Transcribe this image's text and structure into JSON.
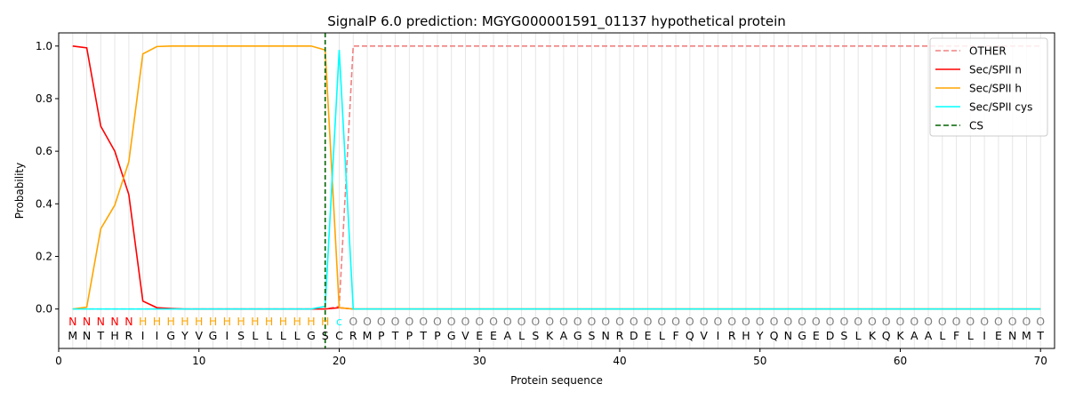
{
  "chart_data": {
    "type": "line",
    "title": "SignalP 6.0 prediction: MGYG000001591_01137 hypothetical protein",
    "xlabel": "Protein sequence",
    "ylabel": "Probability",
    "xlim": [
      0,
      71
    ],
    "ylim": [
      -0.15,
      1.05
    ],
    "xticks": [
      0,
      10,
      20,
      30,
      40,
      50,
      60,
      70
    ],
    "yticks": [
      0.0,
      0.2,
      0.4,
      0.6,
      0.8,
      1.0
    ],
    "sequence": [
      "M",
      "N",
      "T",
      "H",
      "R",
      "I",
      "I",
      "G",
      "Y",
      "V",
      "G",
      "I",
      "S",
      "L",
      "L",
      "L",
      "L",
      "G",
      "S",
      "C",
      "R",
      "M",
      "P",
      "T",
      "P",
      "T",
      "P",
      "G",
      "V",
      "E",
      "E",
      "A",
      "L",
      "S",
      "K",
      "A",
      "G",
      "S",
      "N",
      "R",
      "D",
      "E",
      "L",
      "F",
      "Q",
      "V",
      "I",
      "R",
      "H",
      "Y",
      "Q",
      "N",
      "G",
      "E",
      "D",
      "S",
      "L",
      "K",
      "Q",
      "K",
      "A",
      "A",
      "L",
      "F",
      "L",
      "I",
      "E",
      "N",
      "M",
      "T"
    ],
    "labels": [
      "N",
      "N",
      "N",
      "N",
      "N",
      "H",
      "H",
      "H",
      "H",
      "H",
      "H",
      "H",
      "H",
      "H",
      "H",
      "H",
      "H",
      "H",
      "H",
      "c",
      "O",
      "O",
      "O",
      "O",
      "O",
      "O",
      "O",
      "O",
      "O",
      "O",
      "O",
      "O",
      "O",
      "O",
      "O",
      "O",
      "O",
      "O",
      "O",
      "O",
      "O",
      "O",
      "O",
      "O",
      "O",
      "O",
      "O",
      "O",
      "O",
      "O",
      "O",
      "O",
      "O",
      "O",
      "O",
      "O",
      "O",
      "O",
      "O",
      "O",
      "O",
      "O",
      "O",
      "O",
      "O",
      "O",
      "O",
      "O",
      "O",
      "O"
    ],
    "label_colors": {
      "N": "#ff0000",
      "H": "#ffa500",
      "c": "#00ffff",
      "O": "#808080"
    },
    "series": [
      {
        "name": "OTHER",
        "color": "#f08080",
        "style": "dashed",
        "values": [
          0,
          0,
          0,
          0,
          0,
          0,
          0,
          0,
          0,
          0,
          0,
          0,
          0,
          0,
          0,
          0,
          0,
          0,
          0,
          0.01,
          1.0,
          1,
          1,
          1,
          1,
          1,
          1,
          1,
          1,
          1,
          1,
          1,
          1,
          1,
          1,
          1,
          1,
          1,
          1,
          1,
          1,
          1,
          1,
          1,
          1,
          1,
          1,
          1,
          1,
          1,
          1,
          1,
          1,
          1,
          1,
          1,
          1,
          1,
          1,
          1,
          1,
          1,
          1,
          1,
          1,
          1,
          1,
          1,
          1,
          1
        ]
      },
      {
        "name": "Sec/SPII n",
        "color": "#ff0000",
        "style": "solid",
        "values": [
          1.0,
          0.993,
          0.695,
          0.6,
          0.435,
          0.03,
          0.005,
          0.002,
          0,
          0,
          0,
          0,
          0,
          0,
          0,
          0,
          0,
          0,
          0,
          0.005,
          0,
          0,
          0,
          0,
          0,
          0,
          0,
          0,
          0,
          0,
          0,
          0,
          0,
          0,
          0,
          0,
          0,
          0,
          0,
          0,
          0,
          0,
          0,
          0,
          0,
          0,
          0,
          0,
          0,
          0,
          0,
          0,
          0,
          0,
          0,
          0,
          0,
          0,
          0,
          0,
          0,
          0,
          0,
          0,
          0,
          0,
          0,
          0,
          0,
          0
        ]
      },
      {
        "name": "Sec/SPII h",
        "color": "#ffa500",
        "style": "solid",
        "values": [
          0,
          0.007,
          0.305,
          0.395,
          0.56,
          0.97,
          0.998,
          1.0,
          1.0,
          1.0,
          1.0,
          1.0,
          1.0,
          1.0,
          1.0,
          1.0,
          1.0,
          1.0,
          0.985,
          0.005,
          0,
          0,
          0,
          0,
          0,
          0,
          0,
          0,
          0,
          0,
          0,
          0,
          0,
          0,
          0,
          0,
          0,
          0,
          0,
          0,
          0,
          0,
          0,
          0,
          0,
          0,
          0,
          0,
          0,
          0,
          0,
          0,
          0,
          0,
          0,
          0,
          0,
          0,
          0,
          0,
          0,
          0,
          0,
          0,
          0,
          0,
          0,
          0,
          0,
          0
        ]
      },
      {
        "name": "Sec/SPII cys",
        "color": "#00ffff",
        "style": "solid",
        "values": [
          0,
          0,
          0,
          0,
          0,
          0,
          0,
          0,
          0,
          0,
          0,
          0,
          0,
          0,
          0,
          0,
          0,
          0,
          0.01,
          0.985,
          0,
          0,
          0,
          0,
          0,
          0,
          0,
          0,
          0,
          0,
          0,
          0,
          0,
          0,
          0,
          0,
          0,
          0,
          0,
          0,
          0,
          0,
          0,
          0,
          0,
          0,
          0,
          0,
          0,
          0,
          0,
          0,
          0,
          0,
          0,
          0,
          0,
          0,
          0,
          0,
          0,
          0,
          0,
          0,
          0,
          0,
          0,
          0,
          0,
          0
        ]
      }
    ],
    "cs": {
      "name": "CS",
      "position": 19,
      "color": "#006400",
      "style": "dashed"
    },
    "legend": {
      "placement": "top-right",
      "entries": [
        "OTHER",
        "Sec/SPII n",
        "Sec/SPII h",
        "Sec/SPII cys",
        "CS"
      ]
    },
    "grid": "vertical lines at each residue"
  }
}
